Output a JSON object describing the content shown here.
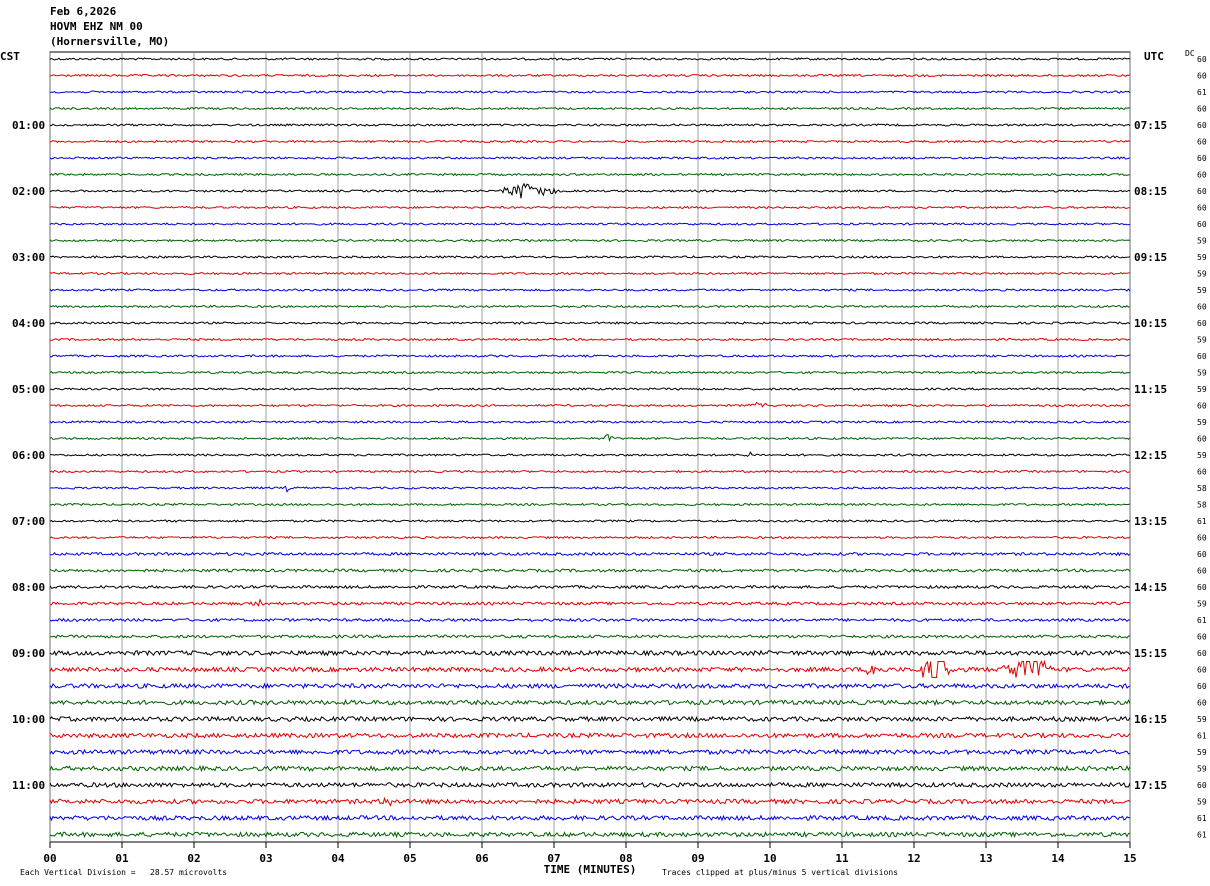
{
  "header": {
    "date": "Feb 6,2026",
    "station": "HOVM EHZ NM 00",
    "location": "(Hornersville, MO)"
  },
  "left_axis": {
    "title": "CST",
    "labels": [
      "01:00",
      "02:00",
      "03:00",
      "04:00",
      "05:00",
      "06:00",
      "07:00",
      "08:00",
      "09:00",
      "10:00",
      "11:00"
    ]
  },
  "right_axis": {
    "title": "UTC",
    "labels": [
      "07:15",
      "08:15",
      "09:15",
      "10:15",
      "11:15",
      "12:15",
      "13:15",
      "14:15",
      "15:15",
      "16:15",
      "17:15"
    ]
  },
  "dc": {
    "title": "DC",
    "values": [
      60,
      60,
      61,
      60,
      60,
      60,
      60,
      60,
      60,
      60,
      60,
      59,
      59,
      59,
      59,
      60,
      60,
      59,
      60,
      59,
      59,
      60,
      59,
      60,
      59,
      60,
      58,
      58,
      61,
      60,
      60,
      60,
      60,
      59,
      61,
      60,
      60,
      60,
      60,
      60,
      59,
      61,
      59,
      59,
      60,
      59,
      61,
      61
    ]
  },
  "trace_colors": [
    "#000000",
    "#e00000",
    "#0000e0",
    "#006000"
  ],
  "x_axis": {
    "title": "TIME (MINUTES)",
    "xlim": [
      0,
      15
    ],
    "ticks": [
      {
        "value": 0,
        "label": "00"
      },
      {
        "value": 1,
        "label": "01"
      },
      {
        "value": 2,
        "label": "02"
      },
      {
        "value": 3,
        "label": "03"
      },
      {
        "value": 4,
        "label": "04"
      },
      {
        "value": 5,
        "label": "05"
      },
      {
        "value": 6,
        "label": "06"
      },
      {
        "value": 7,
        "label": "07"
      },
      {
        "value": 8,
        "label": "08"
      },
      {
        "value": 9,
        "label": "09"
      },
      {
        "value": 10,
        "label": "10"
      },
      {
        "value": 11,
        "label": "11"
      },
      {
        "value": 12,
        "label": "12"
      },
      {
        "value": 13,
        "label": "13"
      },
      {
        "value": 14,
        "label": "14"
      },
      {
        "value": 15,
        "label": "15"
      }
    ]
  },
  "footer": {
    "scale": "Each Vertical Division =   28.57 microvolts",
    "clip": "Traces clipped at plus/minus 5 vertical divisions"
  }
}
